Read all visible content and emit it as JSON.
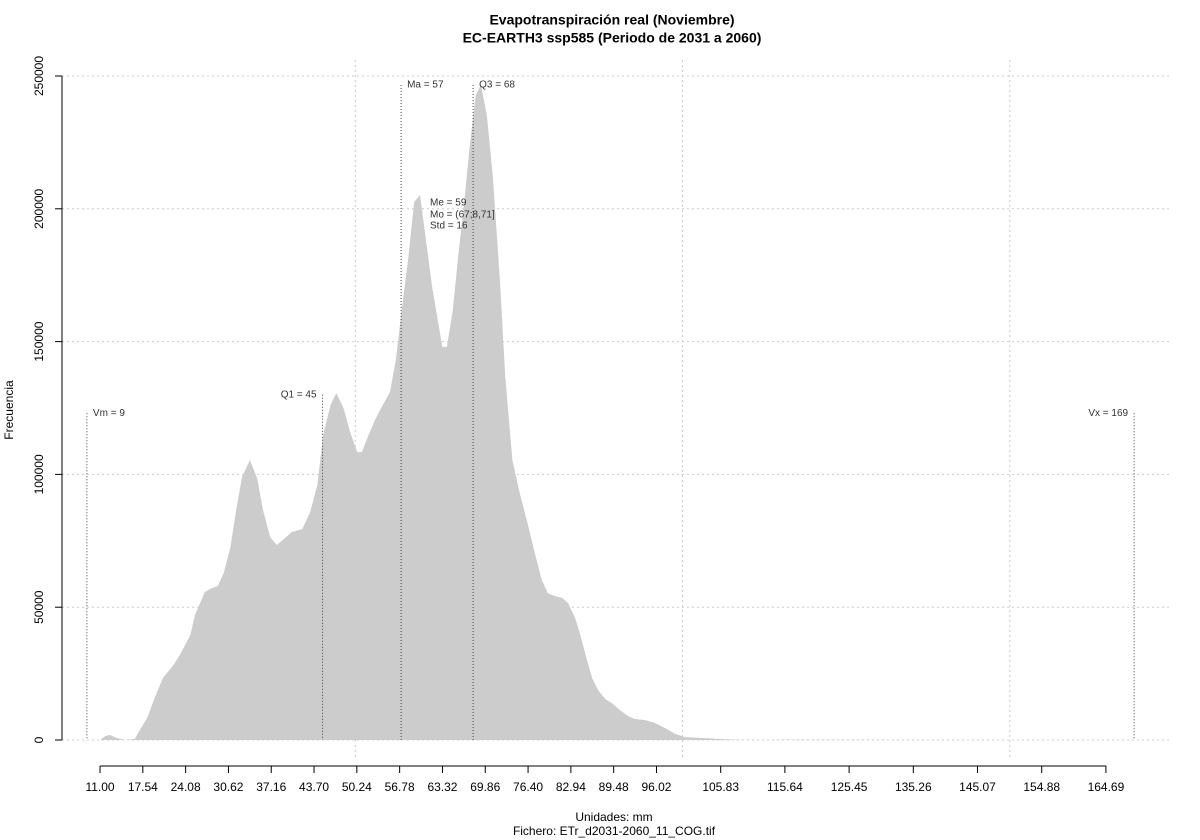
{
  "chart_data": {
    "type": "area",
    "title": "Evapotranspiración real (Noviembre)",
    "subtitle": "EC-EARTH3 ssp585 (Periodo de 2031 a 2060)",
    "x_label": "Unidades: mm",
    "caption": "Fichero: ETr_d2031-2060_11_COG.tif",
    "y_label": "Frecuencia",
    "color": "#cccccc",
    "grid": true,
    "xlim": [
      5.19,
      174.48
    ],
    "ylim": [
      -7530,
      256024
    ],
    "xticks": [
      {
        "value": 11,
        "label": "11.00"
      },
      17.54,
      24.08,
      30.62,
      37.16,
      {
        "value": 43.7,
        "label": "43.70"
      },
      50.24,
      56.78,
      63.32,
      69.86,
      {
        "value": 76.4,
        "label": "76.40"
      },
      82.94,
      89.48,
      96.02,
      105.83,
      115.64,
      125.45,
      135.26,
      145.07,
      154.88,
      164.69
    ],
    "xgrid": [
      50,
      100,
      150
    ],
    "yticks": [
      0,
      50000,
      100000,
      150000,
      200000,
      250000
    ],
    "x": [
      11.0,
      11.8,
      12.5,
      13.6,
      14.8,
      16.3,
      17.1,
      18.2,
      19.4,
      20.6,
      22.2,
      23.2,
      24.0,
      24.8,
      25.5,
      26.3,
      27.0,
      28.1,
      29.0,
      29.9,
      30.9,
      31.8,
      32.7,
      33.9,
      35.0,
      35.9,
      37.0,
      38.0,
      39.3,
      40.3,
      41.9,
      43.1,
      44.2,
      45.1,
      46.2,
      47.1,
      48.2,
      49.2,
      50.3,
      51.0,
      51.9,
      53.0,
      54.2,
      55.3,
      56.2,
      57.1,
      58.1,
      59.0,
      59.9,
      60.8,
      61.7,
      62.6,
      63.3,
      64.0,
      64.9,
      65.7,
      66.6,
      67.5,
      68.4,
      69.2,
      70.1,
      71.0,
      72.1,
      72.9,
      74.0,
      75.2,
      76.2,
      77.5,
      78.5,
      79.4,
      80.5,
      81.6,
      82.5,
      83.6,
      84.3,
      85.4,
      86.2,
      87.1,
      88.2,
      89.2,
      90.4,
      91.7,
      92.7,
      94.3,
      95.8,
      97.3,
      98.9,
      100.4,
      102.7,
      105.7,
      108.8,
      111.8,
      117.0,
      132.2,
      147.5,
      167.1
    ],
    "values": [
      0,
      1500,
      1900,
      750,
      0,
      400,
      3800,
      8300,
      16200,
      23300,
      28200,
      32000,
      35800,
      39500,
      47100,
      51600,
      55700,
      57200,
      58000,
      62900,
      72300,
      86600,
      99000,
      105400,
      98600,
      86600,
      76400,
      73400,
      76100,
      78300,
      79400,
      85800,
      96000,
      114800,
      126100,
      130600,
      125000,
      116000,
      108400,
      108400,
      114100,
      120500,
      126100,
      131000,
      143100,
      161900,
      181500,
      202600,
      205200,
      188200,
      171300,
      158100,
      148000,
      148000,
      161900,
      181500,
      201400,
      224000,
      242800,
      246600,
      235300,
      212700,
      173200,
      137400,
      105400,
      92200,
      82800,
      69700,
      60200,
      55300,
      54200,
      53500,
      51600,
      45900,
      40300,
      30100,
      23300,
      18800,
      15400,
      13900,
      11300,
      9000,
      7900,
      7500,
      6400,
      4500,
      2300,
      1100,
      800,
      400,
      100,
      0,
      150,
      60,
      20,
      0
    ],
    "markers": [
      {
        "label": "Vm = 9",
        "value": 9,
        "top": 123000,
        "label_side": "right"
      },
      {
        "label": "Q1 = 45",
        "value": 45,
        "top": 130000,
        "label_side": "left"
      },
      {
        "label": "Ma = 57",
        "value": 57,
        "top": 246600,
        "label_side": "right"
      },
      {
        "label": "Q3 = 68",
        "value": 68,
        "top": 246600,
        "label_side": "right"
      },
      {
        "label": "Vx = 169",
        "value": 169,
        "top": 123000,
        "label_side": "left"
      }
    ],
    "stats": [
      "Me = 59",
      "Mo = (67;8,71]",
      "Std = 16"
    ]
  }
}
